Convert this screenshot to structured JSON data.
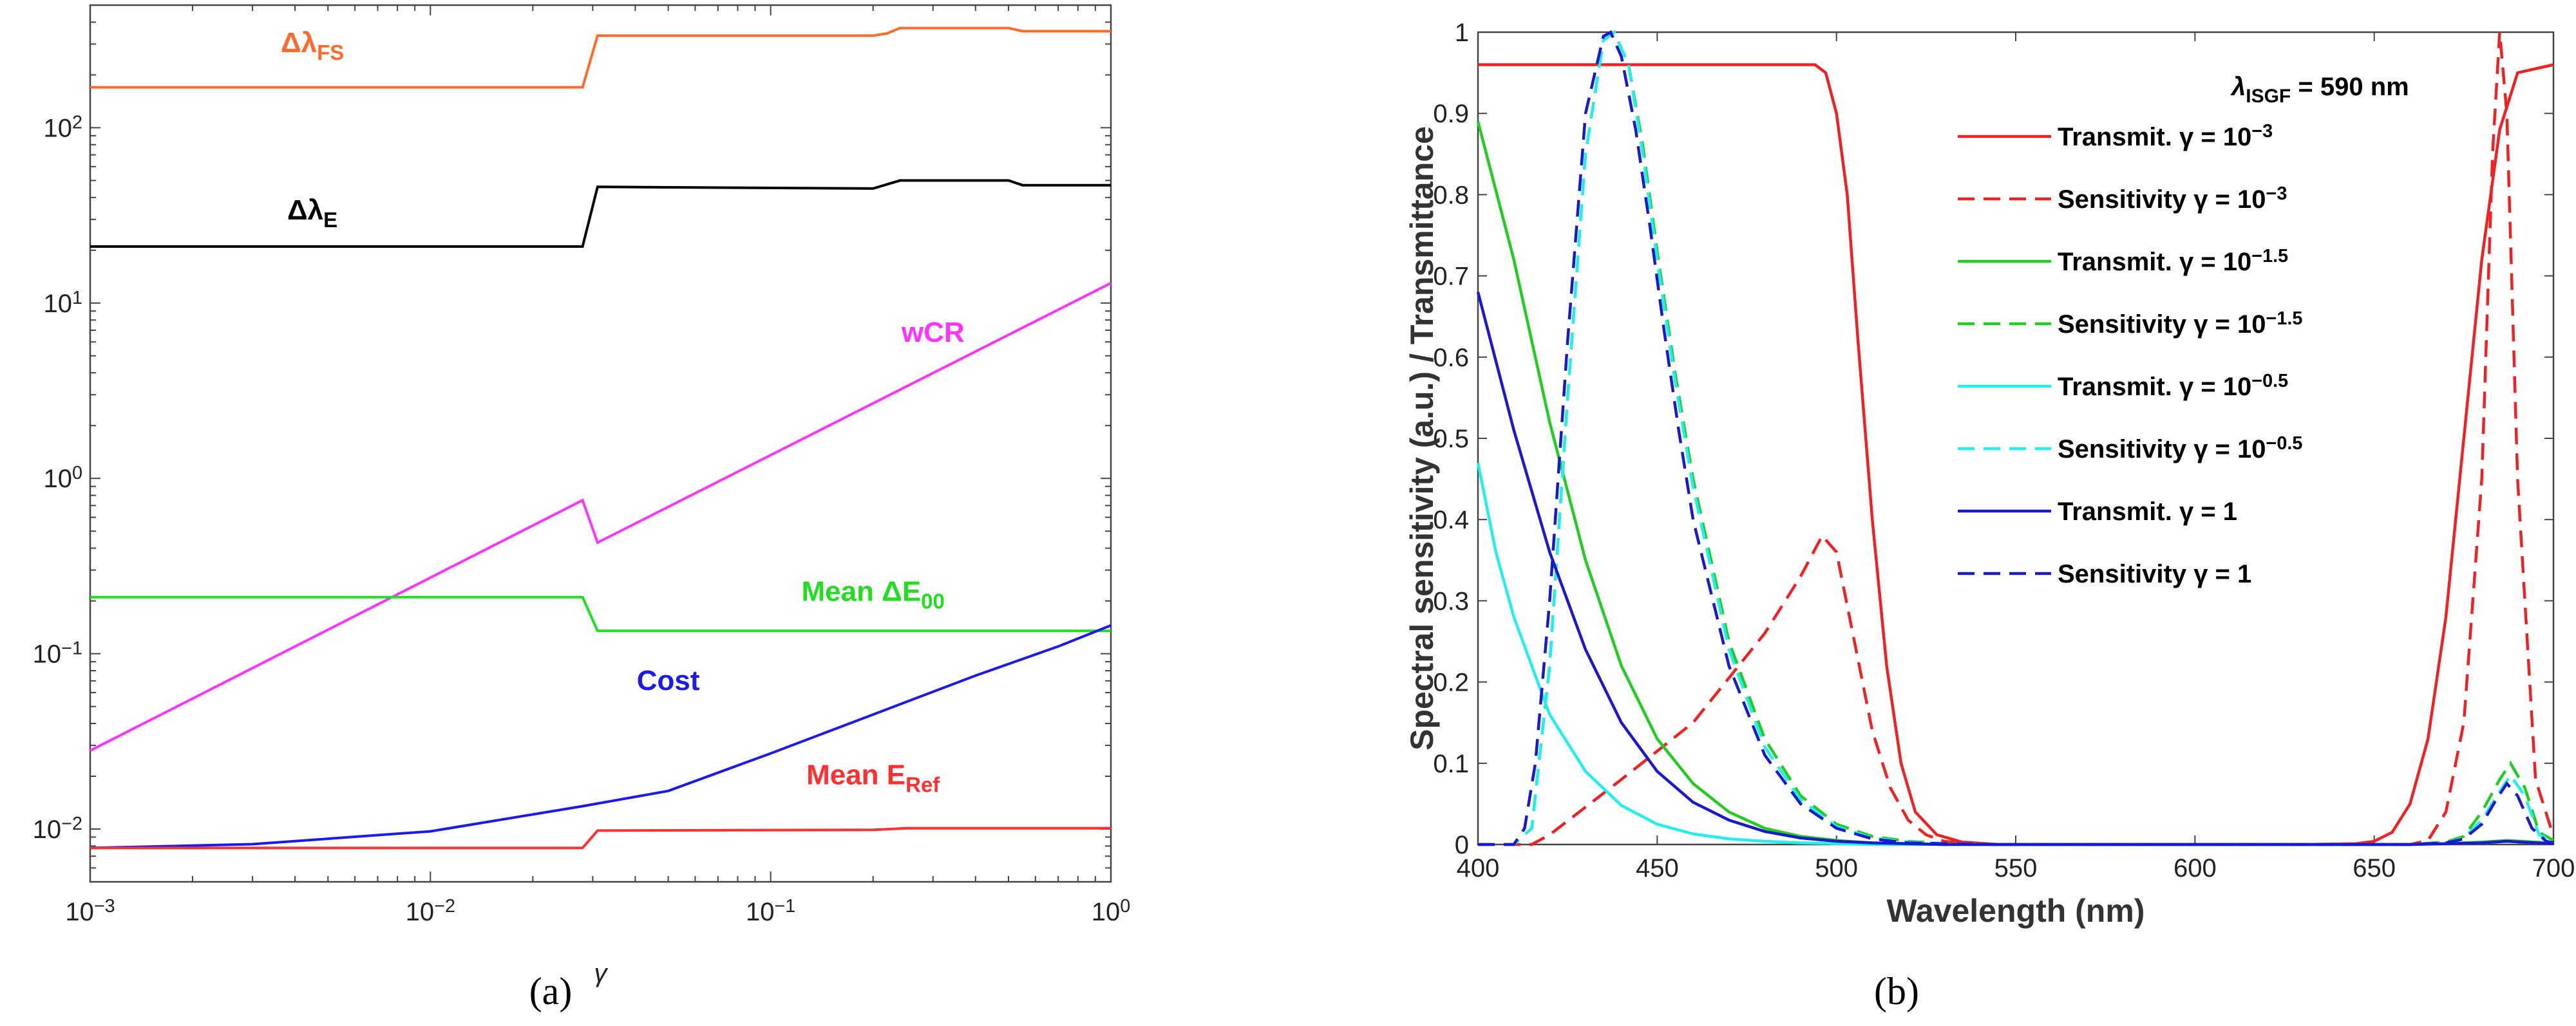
{
  "chart_data": [
    {
      "panel": "(a)",
      "type": "line",
      "xscale": "log",
      "yscale": "log",
      "xlim": [
        0.001,
        1
      ],
      "ylim": [
        0.005,
        500
      ],
      "xlabel": "γ",
      "ylabel": "",
      "xticks": [
        {
          "v": 0.001,
          "base": "10",
          "exp": "−3"
        },
        {
          "v": 0.01,
          "base": "10",
          "exp": "−2"
        },
        {
          "v": 0.1,
          "base": "10",
          "exp": "−1"
        },
        {
          "v": 1,
          "base": "10",
          "exp": "0"
        }
      ],
      "yticks": [
        {
          "v": 0.01,
          "base": "10",
          "exp": "−2"
        },
        {
          "v": 0.1,
          "base": "10",
          "exp": "−1"
        },
        {
          "v": 1,
          "base": "10",
          "exp": "0"
        },
        {
          "v": 10,
          "base": "10",
          "exp": "1"
        },
        {
          "v": 100,
          "base": "10",
          "exp": "2"
        }
      ],
      "series": [
        {
          "name": "Δλ_FS",
          "color": "#ff6a2a",
          "label": {
            "main": "Δλ",
            "sub": "FS",
            "at": [
              0.0045,
              270
            ]
          },
          "points": [
            [
              0.001,
              170
            ],
            [
              0.028,
              170
            ],
            [
              0.031,
              335
            ],
            [
              0.2,
              335
            ],
            [
              0.22,
              345
            ],
            [
              0.24,
              370
            ],
            [
              0.5,
              370
            ],
            [
              0.55,
              355
            ],
            [
              1,
              355
            ]
          ]
        },
        {
          "name": "Δλ_E",
          "color": "#000000",
          "label": {
            "main": "Δλ",
            "sub": "E",
            "at": [
              0.0045,
              30
            ]
          },
          "points": [
            [
              0.001,
              21
            ],
            [
              0.028,
              21
            ],
            [
              0.031,
              46
            ],
            [
              0.2,
              45
            ],
            [
              0.24,
              50
            ],
            [
              0.5,
              50
            ],
            [
              0.55,
              47
            ],
            [
              1,
              47
            ]
          ]
        },
        {
          "name": "wCR",
          "color": "#ff33ff",
          "label": {
            "main": "wCR",
            "sub": "",
            "at": [
              0.3,
              6
            ]
          },
          "points": [
            [
              0.001,
              0.028
            ],
            [
              0.028,
              0.75
            ],
            [
              0.031,
              0.43
            ],
            [
              1,
              13
            ]
          ]
        },
        {
          "name": "Mean ΔE00",
          "color": "#22dd22",
          "label": {
            "main": "Mean ΔE",
            "sub": "00",
            "at": [
              0.2,
              0.2
            ]
          },
          "points": [
            [
              0.001,
              0.21
            ],
            [
              0.028,
              0.21
            ],
            [
              0.031,
              0.135
            ],
            [
              1,
              0.135
            ]
          ]
        },
        {
          "name": "Cost",
          "color": "#1a1aee",
          "label": {
            "main": "Cost",
            "sub": "",
            "at": [
              0.05,
              0.062
            ]
          },
          "points": [
            [
              0.001,
              0.0078
            ],
            [
              0.003,
              0.0082
            ],
            [
              0.01,
              0.0097
            ],
            [
              0.028,
              0.0135
            ],
            [
              0.05,
              0.0165
            ],
            [
              0.1,
              0.027
            ],
            [
              0.2,
              0.045
            ],
            [
              0.4,
              0.075
            ],
            [
              0.7,
              0.11
            ],
            [
              1,
              0.145
            ]
          ]
        },
        {
          "name": "Mean E_Ref",
          "color": "#ff3030",
          "label": {
            "main": "Mean E",
            "sub": "Ref",
            "at": [
              0.2,
              0.018
            ]
          },
          "points": [
            [
              0.001,
              0.0078
            ],
            [
              0.028,
              0.0078
            ],
            [
              0.031,
              0.0098
            ],
            [
              0.2,
              0.0099
            ],
            [
              0.25,
              0.0101
            ],
            [
              1,
              0.0101
            ]
          ]
        }
      ]
    },
    {
      "panel": "(b)",
      "type": "line",
      "xlim": [
        400,
        700
      ],
      "ylim": [
        0,
        1
      ],
      "xlabel": "Wavelength (nm)",
      "ylabel": "Spectral sensitivity (a.u.) / Transmittance",
      "xticks": [
        400,
        450,
        500,
        550,
        600,
        650,
        700
      ],
      "yticks": [
        0,
        0.1,
        0.2,
        0.3,
        0.4,
        0.5,
        0.6,
        0.7,
        0.8,
        0.9,
        1
      ],
      "legend_title": {
        "symbol": "λ",
        "sub": "ISGF",
        "text": " = 590 nm"
      },
      "legend_position": "top-right",
      "series": [
        {
          "name": "Transmit. γ = 10^−3",
          "label": "Transmit. γ = 10",
          "exp": "−3",
          "color": "#ee2222",
          "dash": false,
          "x": [
            400,
            480,
            494,
            497,
            500,
            503,
            506,
            510,
            514,
            518,
            522,
            528,
            535,
            545,
            560,
            630,
            645,
            650,
            655,
            660,
            665,
            670,
            675,
            680,
            685,
            690,
            700
          ],
          "y": [
            0.96,
            0.96,
            0.96,
            0.95,
            0.9,
            0.8,
            0.62,
            0.4,
            0.22,
            0.1,
            0.04,
            0.012,
            0.003,
            0,
            0,
            0,
            0.001,
            0.004,
            0.015,
            0.05,
            0.13,
            0.28,
            0.5,
            0.72,
            0.88,
            0.95,
            0.96
          ]
        },
        {
          "name": "Sensitivity γ = 10^−3",
          "label": "Sensitivity γ = 10",
          "exp": "−3",
          "color": "#ee2222",
          "dash": true,
          "x": [
            400,
            415,
            420,
            440,
            460,
            480,
            490,
            496,
            500,
            505,
            510,
            515,
            520,
            525,
            530,
            540,
            660,
            665,
            670,
            675,
            680,
            683,
            685,
            687,
            690,
            695,
            700
          ],
          "y": [
            0,
            0,
            0.012,
            0.08,
            0.15,
            0.26,
            0.33,
            0.38,
            0.36,
            0.25,
            0.14,
            0.07,
            0.03,
            0.012,
            0.004,
            0,
            0,
            0.005,
            0.04,
            0.15,
            0.45,
            0.85,
            1,
            0.9,
            0.45,
            0.08,
            0.01
          ]
        },
        {
          "name": "Transmit. γ = 10^−1.5",
          "label": "Transmit. γ = 10",
          "exp": "−1.5",
          "color": "#22cc22",
          "dash": false,
          "x": [
            400,
            410,
            420,
            430,
            440,
            450,
            460,
            470,
            480,
            490,
            500,
            510,
            520,
            530,
            545,
            560,
            660,
            670,
            680,
            687,
            695,
            700
          ],
          "y": [
            0.89,
            0.72,
            0.52,
            0.35,
            0.22,
            0.13,
            0.075,
            0.04,
            0.02,
            0.01,
            0.005,
            0.002,
            0.001,
            0,
            0,
            0,
            0,
            0.001,
            0.003,
            0.005,
            0.003,
            0.002
          ]
        },
        {
          "name": "Sensitivity γ = 10^−1.5",
          "label": "Sensitivity γ = 10",
          "exp": "−1.5",
          "color": "#22cc22",
          "dash": true,
          "x": [
            400,
            410,
            415,
            420,
            425,
            430,
            435,
            438,
            442,
            446,
            450,
            455,
            460,
            470,
            480,
            490,
            500,
            510,
            520,
            530,
            545,
            560,
            660,
            670,
            675,
            680,
            685,
            688,
            692,
            696,
            700
          ],
          "y": [
            0,
            0,
            0.02,
            0.22,
            0.55,
            0.85,
            0.99,
            1,
            0.96,
            0.86,
            0.73,
            0.58,
            0.45,
            0.25,
            0.13,
            0.06,
            0.025,
            0.01,
            0.004,
            0.001,
            0,
            0,
            0,
            0.003,
            0.01,
            0.04,
            0.08,
            0.1,
            0.07,
            0.015,
            0.005
          ]
        },
        {
          "name": "Transmit. γ = 10^−0.5",
          "label": "Transmit. γ = 10",
          "exp": "−0.5",
          "color": "#22eeee",
          "dash": false,
          "x": [
            400,
            405,
            410,
            420,
            430,
            440,
            450,
            460,
            470,
            480,
            490,
            500,
            510,
            520,
            530,
            540,
            660,
            680,
            687,
            695,
            700
          ],
          "y": [
            0.47,
            0.36,
            0.28,
            0.16,
            0.09,
            0.048,
            0.025,
            0.013,
            0.007,
            0.004,
            0.002,
            0.001,
            0,
            0,
            0,
            0,
            0,
            0.002,
            0.004,
            0.002,
            0.001
          ]
        },
        {
          "name": "Sensitivity γ = 10^−0.5",
          "label": "Sensitivity γ = 10",
          "exp": "−0.5",
          "color": "#22eeee",
          "dash": true,
          "x": [
            400,
            410,
            415,
            420,
            425,
            430,
            435,
            438,
            442,
            446,
            450,
            455,
            460,
            470,
            480,
            490,
            500,
            510,
            520,
            530,
            545,
            560,
            660,
            670,
            675,
            680,
            685,
            688,
            692,
            696,
            700
          ],
          "y": [
            0,
            0,
            0.02,
            0.22,
            0.55,
            0.85,
            0.99,
            1,
            0.96,
            0.85,
            0.72,
            0.57,
            0.44,
            0.24,
            0.12,
            0.055,
            0.022,
            0.008,
            0.003,
            0.001,
            0,
            0,
            0,
            0.002,
            0.008,
            0.03,
            0.065,
            0.085,
            0.06,
            0.012,
            0.004
          ]
        },
        {
          "name": "Transmit. γ = 1",
          "label": "Transmit. γ = 1",
          "exp": "",
          "color": "#1a1acc",
          "dash": false,
          "x": [
            400,
            410,
            420,
            430,
            440,
            450,
            460,
            470,
            480,
            490,
            500,
            510,
            520,
            530,
            545,
            560,
            660,
            680,
            687,
            695,
            700
          ],
          "y": [
            0.68,
            0.51,
            0.36,
            0.24,
            0.15,
            0.09,
            0.052,
            0.03,
            0.016,
            0.008,
            0.004,
            0.002,
            0.001,
            0,
            0,
            0,
            0,
            0.002,
            0.004,
            0.002,
            0.001
          ]
        },
        {
          "name": "Sensitivity γ = 1",
          "label": "Sensitivity γ = 1",
          "exp": "",
          "color": "#1a1acc",
          "dash": true,
          "x": [
            400,
            410,
            413,
            416,
            420,
            425,
            430,
            435,
            437,
            440,
            444,
            448,
            452,
            456,
            460,
            470,
            480,
            490,
            500,
            510,
            520,
            530,
            545,
            560,
            660,
            670,
            675,
            680,
            684,
            687,
            690,
            694,
            698,
            700
          ],
          "y": [
            0,
            0,
            0.02,
            0.1,
            0.3,
            0.62,
            0.9,
            0.995,
            1,
            0.97,
            0.88,
            0.76,
            0.63,
            0.51,
            0.4,
            0.22,
            0.11,
            0.05,
            0.02,
            0.007,
            0.002,
            0.001,
            0,
            0,
            0,
            0.002,
            0.007,
            0.025,
            0.055,
            0.075,
            0.06,
            0.02,
            0.004,
            0.002
          ]
        }
      ]
    }
  ]
}
